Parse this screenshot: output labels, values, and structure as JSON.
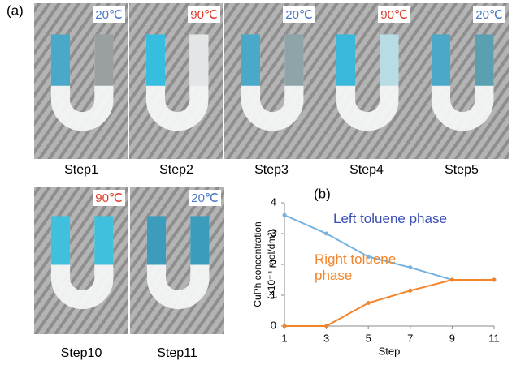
{
  "panel_labels": [
    "(a)",
    "(b)"
  ],
  "photos": [
    {
      "step": "Step1",
      "temperature": "20℃",
      "temperature_color": "#4a78c8",
      "left_color": "#4aa8c8",
      "right_color": "#9aa0a0"
    },
    {
      "step": "Step2",
      "temperature": "90℃",
      "temperature_color": "#e03a2a",
      "left_color": "#36bde0",
      "right_color": "#e2e6e6"
    },
    {
      "step": "Step3",
      "temperature": "20℃",
      "temperature_color": "#4a78c8",
      "left_color": "#4aa8c8",
      "right_color": "#8ea4a8"
    },
    {
      "step": "Step4",
      "temperature": "90℃",
      "temperature_color": "#e03a2a",
      "left_color": "#3ab8dc",
      "right_color": "#b8dce4"
    },
    {
      "step": "Step5",
      "temperature": "20℃",
      "temperature_color": "#4a78c8",
      "left_color": "#4aa8c8",
      "right_color": "#5aa0b0"
    },
    {
      "step": "Step10",
      "temperature": "90℃",
      "temperature_color": "#e03a2a",
      "left_color": "#40c0dc",
      "right_color": "#40c0dc"
    },
    {
      "step": "Step11",
      "temperature": "20℃",
      "temperature_color": "#4a78c8",
      "left_color": "#3c9cbc",
      "right_color": "#3c9cbc"
    }
  ],
  "chart_data": {
    "type": "line",
    "y_label_lines": [
      "CuPh concentration",
      "(×10⁻⁴ mol/dm³)"
    ],
    "x_label": "Step",
    "x": [
      1,
      3,
      5,
      7,
      9,
      11
    ],
    "xlim": [
      1,
      11
    ],
    "xticks": [
      1,
      3,
      5,
      7,
      9,
      11
    ],
    "ylim": [
      0,
      4
    ],
    "yticks": [
      0,
      1,
      2,
      3,
      4
    ],
    "series": [
      {
        "name": "Left toluene phase",
        "color": "#74b2e2",
        "label_color": "#3a4fb4",
        "values": [
          3.6,
          3.0,
          2.25,
          1.9,
          1.5,
          1.5
        ]
      },
      {
        "name": "Right toluene phase",
        "color": "#f4842a",
        "label_color": "#f4842a",
        "values": [
          0,
          0,
          0.75,
          1.15,
          1.5,
          1.5
        ]
      }
    ]
  }
}
